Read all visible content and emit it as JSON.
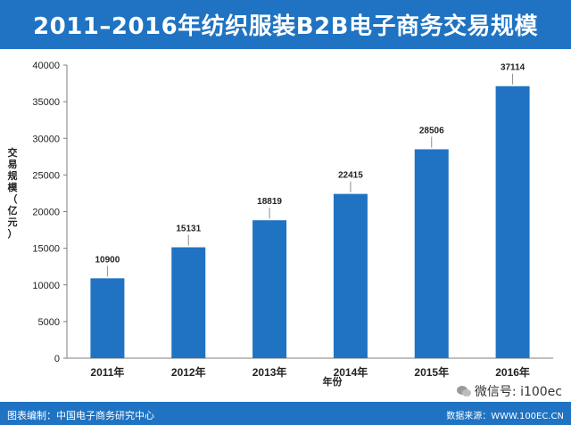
{
  "header": {
    "title": "2011–2016年纺织服装B2B电子商务交易规模"
  },
  "footer": {
    "credit": "图表编制：中国电子商务研究中心",
    "source": "数据来源：WWW.100EC.CN"
  },
  "watermark": {
    "text": "微信号: i100ec",
    "icon": "wechat-icon"
  },
  "colors": {
    "header_bg": "#1f73c2",
    "bar": "#1f73c2"
  },
  "chart_data": {
    "type": "bar",
    "title": "2011–2016年纺织服装B2B电子商务交易规模",
    "xlabel": "年份",
    "ylabel": "交易规模（亿元）",
    "categories": [
      "2011年",
      "2012年",
      "2013年",
      "2014年",
      "2015年",
      "2016年"
    ],
    "values": [
      10900,
      15131,
      18819,
      22415,
      28506,
      37114
    ],
    "ylim": [
      0,
      40000
    ],
    "yticks": [
      0,
      5000,
      10000,
      15000,
      20000,
      25000,
      30000,
      35000,
      40000
    ],
    "grid": false,
    "legend": "none"
  }
}
